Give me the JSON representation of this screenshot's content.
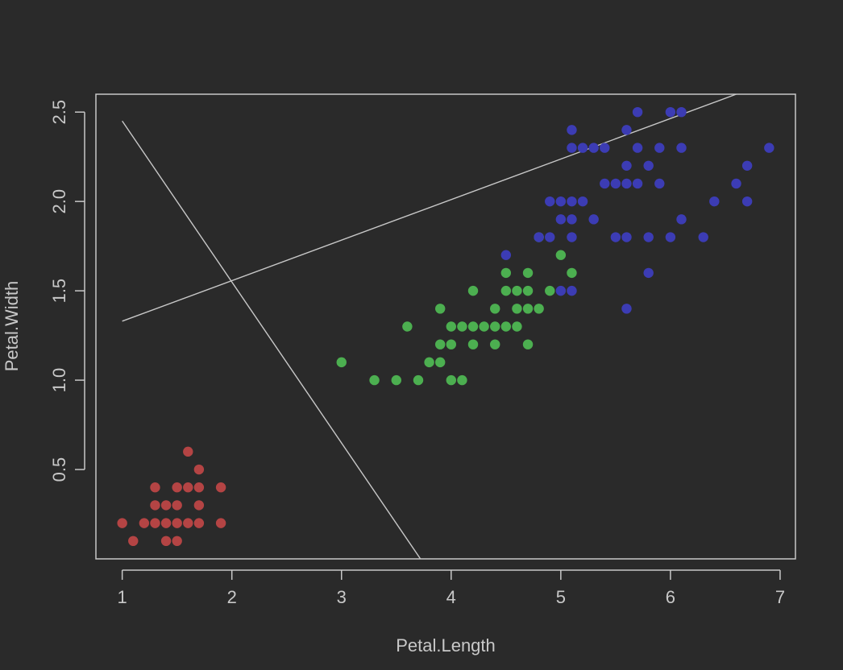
{
  "colors": {
    "background": "#2a2a2a",
    "foreground": "#c8c8c8",
    "setosa": "#b44444",
    "versicolor": "#4caf50",
    "virginica": "#3c3cb4"
  },
  "chart_data": {
    "type": "scatter",
    "title": "",
    "xlabel": "Petal.Length",
    "ylabel": "Petal.Width",
    "xlim": [
      0.76,
      7.14
    ],
    "ylim": [
      -0.0,
      2.6
    ],
    "xticks": [
      1,
      2,
      3,
      4,
      5,
      6,
      7
    ],
    "xtick_labels": [
      "1",
      "2",
      "3",
      "4",
      "5",
      "6",
      "7"
    ],
    "yticks": [
      0.5,
      1.0,
      1.5,
      2.0,
      2.5
    ],
    "ytick_labels": [
      "0.5",
      "1.0",
      "1.5",
      "2.0",
      "2.5"
    ],
    "grid": false,
    "legend": "none",
    "series": [
      {
        "color": "#b44444",
        "points": [
          [
            1.0,
            0.2
          ],
          [
            1.1,
            0.1
          ],
          [
            1.2,
            0.2
          ],
          [
            1.3,
            0.2
          ],
          [
            1.3,
            0.3
          ],
          [
            1.3,
            0.4
          ],
          [
            1.4,
            0.1
          ],
          [
            1.4,
            0.2
          ],
          [
            1.4,
            0.3
          ],
          [
            1.5,
            0.1
          ],
          [
            1.5,
            0.2
          ],
          [
            1.5,
            0.3
          ],
          [
            1.5,
            0.4
          ],
          [
            1.6,
            0.2
          ],
          [
            1.6,
            0.4
          ],
          [
            1.6,
            0.6
          ],
          [
            1.7,
            0.2
          ],
          [
            1.7,
            0.3
          ],
          [
            1.7,
            0.4
          ],
          [
            1.7,
            0.5
          ],
          [
            1.9,
            0.2
          ],
          [
            1.9,
            0.4
          ]
        ]
      },
      {
        "color": "#4caf50",
        "points": [
          [
            3.0,
            1.1
          ],
          [
            3.3,
            1.0
          ],
          [
            3.5,
            1.0
          ],
          [
            3.6,
            1.3
          ],
          [
            3.7,
            1.0
          ],
          [
            3.8,
            1.1
          ],
          [
            3.9,
            1.1
          ],
          [
            3.9,
            1.2
          ],
          [
            3.9,
            1.4
          ],
          [
            4.0,
            1.0
          ],
          [
            4.0,
            1.2
          ],
          [
            4.0,
            1.3
          ],
          [
            4.1,
            1.0
          ],
          [
            4.1,
            1.3
          ],
          [
            4.2,
            1.2
          ],
          [
            4.2,
            1.3
          ],
          [
            4.2,
            1.5
          ],
          [
            4.3,
            1.3
          ],
          [
            4.4,
            1.2
          ],
          [
            4.4,
            1.3
          ],
          [
            4.4,
            1.4
          ],
          [
            4.5,
            1.3
          ],
          [
            4.5,
            1.5
          ],
          [
            4.5,
            1.6
          ],
          [
            4.6,
            1.3
          ],
          [
            4.6,
            1.4
          ],
          [
            4.6,
            1.5
          ],
          [
            4.7,
            1.2
          ],
          [
            4.7,
            1.4
          ],
          [
            4.7,
            1.5
          ],
          [
            4.7,
            1.6
          ],
          [
            4.8,
            1.4
          ],
          [
            4.8,
            1.8
          ],
          [
            4.9,
            1.5
          ],
          [
            5.0,
            1.7
          ],
          [
            5.1,
            1.6
          ]
        ]
      },
      {
        "color": "#3c3cb4",
        "points": [
          [
            4.5,
            1.7
          ],
          [
            4.8,
            1.8
          ],
          [
            4.9,
            1.8
          ],
          [
            4.9,
            2.0
          ],
          [
            5.0,
            1.5
          ],
          [
            5.0,
            1.9
          ],
          [
            5.0,
            2.0
          ],
          [
            5.1,
            1.5
          ],
          [
            5.1,
            1.8
          ],
          [
            5.1,
            1.9
          ],
          [
            5.1,
            2.0
          ],
          [
            5.1,
            2.3
          ],
          [
            5.1,
            2.4
          ],
          [
            5.2,
            2.0
          ],
          [
            5.2,
            2.3
          ],
          [
            5.3,
            1.9
          ],
          [
            5.3,
            2.3
          ],
          [
            5.4,
            2.1
          ],
          [
            5.4,
            2.3
          ],
          [
            5.5,
            1.8
          ],
          [
            5.5,
            2.1
          ],
          [
            5.6,
            1.4
          ],
          [
            5.6,
            1.8
          ],
          [
            5.6,
            2.1
          ],
          [
            5.6,
            2.2
          ],
          [
            5.6,
            2.4
          ],
          [
            5.7,
            2.1
          ],
          [
            5.7,
            2.3
          ],
          [
            5.7,
            2.5
          ],
          [
            5.8,
            1.6
          ],
          [
            5.8,
            1.8
          ],
          [
            5.8,
            2.2
          ],
          [
            5.9,
            2.1
          ],
          [
            5.9,
            2.3
          ],
          [
            6.0,
            1.8
          ],
          [
            6.0,
            2.5
          ],
          [
            6.1,
            1.9
          ],
          [
            6.1,
            2.3
          ],
          [
            6.1,
            2.5
          ],
          [
            6.3,
            1.8
          ],
          [
            6.4,
            2.0
          ],
          [
            6.6,
            2.1
          ],
          [
            6.7,
            2.0
          ],
          [
            6.7,
            2.2
          ],
          [
            6.9,
            2.3
          ]
        ]
      }
    ],
    "lines": [
      {
        "from": [
          1.0,
          2.45
        ],
        "to": [
          3.72,
          0.0
        ]
      },
      {
        "from": [
          1.0,
          1.33
        ],
        "to": [
          6.6,
          2.6
        ]
      }
    ]
  }
}
